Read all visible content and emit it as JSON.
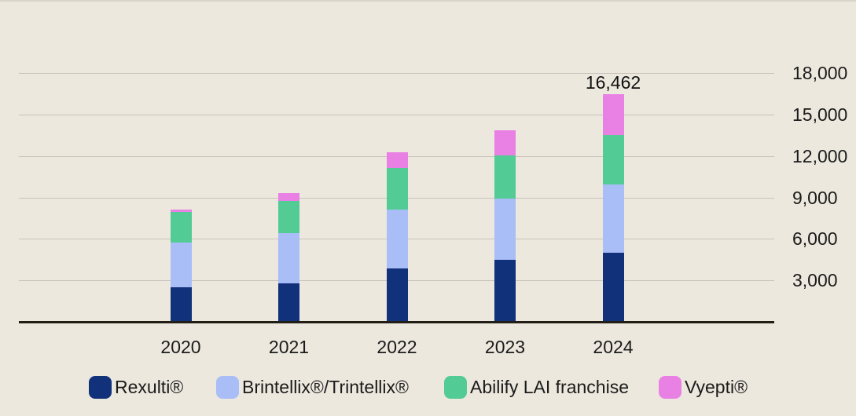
{
  "chart_data": {
    "type": "bar",
    "stacked": true,
    "title": "",
    "xlabel": "",
    "ylabel": "",
    "categories": [
      "2020",
      "2021",
      "2022",
      "2023",
      "2024"
    ],
    "series": [
      {
        "name": "Rexulti®",
        "color": "#12317B",
        "values": [
          2520,
          2810,
          3850,
          4480,
          5022
        ]
      },
      {
        "name": "Brintellix®/Trintellix®",
        "color": "#A9BDF7",
        "values": [
          3210,
          3590,
          4290,
          4450,
          4948
        ]
      },
      {
        "name": "Abilify LAI franchise",
        "color": "#53CB95",
        "values": [
          2240,
          2330,
          3020,
          3130,
          3538
        ]
      },
      {
        "name": "Vyepti®",
        "color": "#E881E3",
        "values": [
          150,
          590,
          1090,
          1780,
          2954
        ]
      }
    ],
    "totals": [
      8120,
      9320,
      12250,
      13840,
      16462
    ],
    "annotations": [
      {
        "category": "2024",
        "text": "16,462"
      }
    ],
    "y_ticks": [
      3000,
      6000,
      9000,
      12000,
      15000,
      18000
    ],
    "y_tick_labels": [
      "3,000",
      "6,000",
      "9,000",
      "12,000",
      "15,000",
      "18,000"
    ],
    "ylim": [
      0,
      18000
    ],
    "grid": "horizontal",
    "legend_position": "bottom",
    "colors": {
      "background": "#ECE8DE",
      "gridline": "#C8C4BB",
      "axis": "#221D15",
      "text": "#1B1B1B"
    }
  }
}
